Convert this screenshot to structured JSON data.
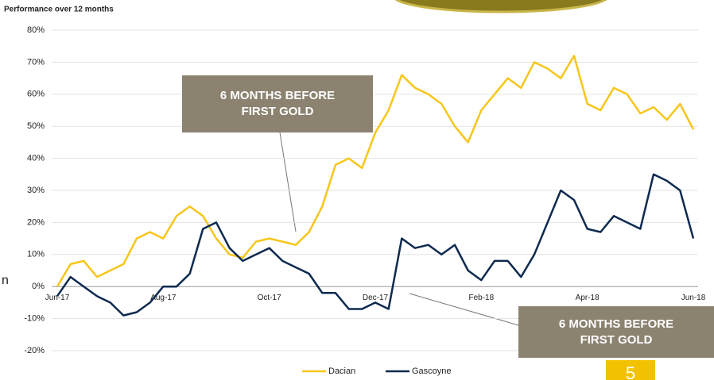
{
  "chart_data": {
    "type": "line",
    "title": "Performance over 12 months",
    "categories": [
      "Jun-17",
      null,
      null,
      null,
      null,
      null,
      null,
      null,
      "Aug-17",
      null,
      null,
      null,
      null,
      null,
      null,
      null,
      "Oct-17",
      null,
      null,
      null,
      null,
      null,
      null,
      null,
      "Dec-17",
      null,
      null,
      null,
      null,
      null,
      null,
      null,
      "Feb-18",
      null,
      null,
      null,
      null,
      null,
      null,
      null,
      "Apr-18",
      null,
      null,
      null,
      null,
      null,
      null,
      null,
      "Jun-18"
    ],
    "series": [
      {
        "name": "Dacian",
        "color": "#f7c61a",
        "values": [
          0,
          7,
          8,
          3,
          5,
          7,
          15,
          17,
          15,
          22,
          25,
          22,
          15,
          10,
          9,
          14,
          15,
          14,
          13,
          17,
          25,
          38,
          40,
          37,
          48,
          55,
          66,
          62,
          60,
          57,
          50,
          45,
          55,
          60,
          65,
          62,
          70,
          68,
          65,
          72,
          57,
          55,
          62,
          60,
          54,
          56,
          52,
          57,
          49
        ]
      },
      {
        "name": "Gascoyne",
        "color": "#0e2a4f",
        "values": [
          -3,
          3,
          0,
          -3,
          -5,
          -9,
          -8,
          -5,
          0,
          0,
          4,
          18,
          20,
          12,
          8,
          10,
          12,
          8,
          6,
          4,
          -2,
          -2,
          -7,
          -7,
          -5,
          -7,
          15,
          12,
          13,
          10,
          13,
          5,
          2,
          8,
          8,
          3,
          10,
          20,
          30,
          27,
          18,
          17,
          22,
          20,
          18,
          35,
          33,
          30,
          15
        ]
      }
    ],
    "ylim": [
      -20,
      80
    ],
    "yticks": [
      {
        "value": -20,
        "label": "-20%"
      },
      {
        "value": -10,
        "label": "-10%"
      },
      {
        "value": 0,
        "label": "0%"
      },
      {
        "value": 10,
        "label": "10%"
      },
      {
        "value": 20,
        "label": "20%"
      },
      {
        "value": 30,
        "label": "30%"
      },
      {
        "value": 40,
        "label": "40%"
      },
      {
        "value": 50,
        "label": "50%"
      },
      {
        "value": 60,
        "label": "60%"
      },
      {
        "value": 70,
        "label": "70%"
      },
      {
        "value": 80,
        "label": "80%"
      }
    ],
    "grid": true,
    "legend": "bottom",
    "annotations": [
      "6 MONTHS BEFORE FIRST GOLD",
      "6 MONTHS BEFORE FIRST GOLD"
    ]
  },
  "side_label": "n",
  "page_number": "5"
}
